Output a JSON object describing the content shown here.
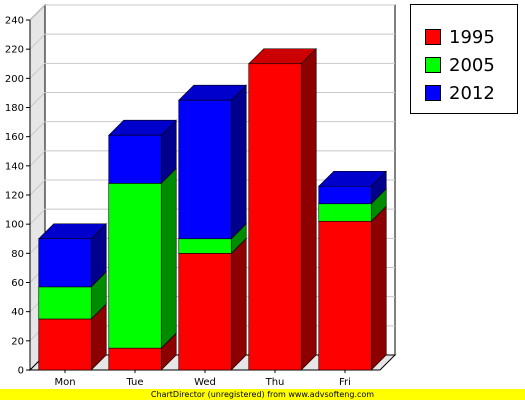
{
  "chart_data": {
    "type": "bar",
    "stacked": true,
    "three_d": true,
    "categories": [
      "Mon",
      "Tue",
      "Wed",
      "Thu",
      "Fri"
    ],
    "series": [
      {
        "name": "1995",
        "color": "#ff0000",
        "values": [
          35,
          15,
          80,
          210,
          102
        ]
      },
      {
        "name": "2005",
        "color": "#00ff00",
        "values": [
          22,
          113,
          10,
          0,
          12
        ]
      },
      {
        "name": "2012",
        "color": "#0000ff",
        "values": [
          33,
          33,
          95,
          0,
          12
        ]
      }
    ],
    "yticks": [
      "0",
      "20",
      "40",
      "60",
      "80",
      "100",
      "120",
      "140",
      "160",
      "180",
      "200",
      "220",
      "240"
    ],
    "ylim": [
      0,
      240
    ],
    "grid": true,
    "legend_position": "top-right"
  },
  "footer": {
    "text": "ChartDirector (unregistered) from www.advsofteng.com"
  }
}
